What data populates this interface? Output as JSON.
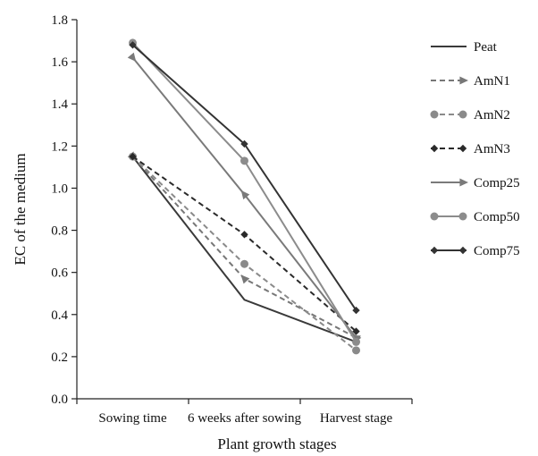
{
  "chart_data": {
    "type": "line",
    "categories": [
      "Sowing time",
      "6 weeks after sowing",
      "Harvest stage"
    ],
    "xlabel": "Plant growth stages",
    "ylabel": "EC of the medium",
    "ylim": [
      0,
      1.8
    ],
    "yticks": [
      "0.0",
      "0.2",
      "0.4",
      "0.6",
      "0.8",
      "1.0",
      "1.2",
      "1.4",
      "1.6",
      "1.8"
    ],
    "grid": false,
    "legend_position": "right",
    "series": [
      {
        "name": "Peat",
        "values": [
          1.15,
          0.47,
          0.27
        ],
        "color": "#3a3a3a",
        "dash": "solid",
        "marker": "none"
      },
      {
        "name": "AmN1",
        "values": [
          1.15,
          0.57,
          0.29
        ],
        "color": "#777777",
        "dash": "dashed",
        "marker": "arrow"
      },
      {
        "name": "AmN2",
        "values": [
          1.15,
          0.64,
          0.23
        ],
        "color": "#8a8a8a",
        "dash": "dashed",
        "marker": "circle"
      },
      {
        "name": "AmN3",
        "values": [
          1.15,
          0.78,
          0.32
        ],
        "color": "#2a2a2a",
        "dash": "dashed",
        "marker": "diamond"
      },
      {
        "name": "Comp25",
        "values": [
          1.62,
          0.97,
          0.29
        ],
        "color": "#7a7a7a",
        "dash": "solid",
        "marker": "arrow"
      },
      {
        "name": "Comp50",
        "values": [
          1.69,
          1.13,
          0.27
        ],
        "color": "#8c8c8c",
        "dash": "solid",
        "marker": "circle"
      },
      {
        "name": "Comp75",
        "values": [
          1.68,
          1.21,
          0.42
        ],
        "color": "#333333",
        "dash": "solid",
        "marker": "diamond"
      }
    ]
  }
}
